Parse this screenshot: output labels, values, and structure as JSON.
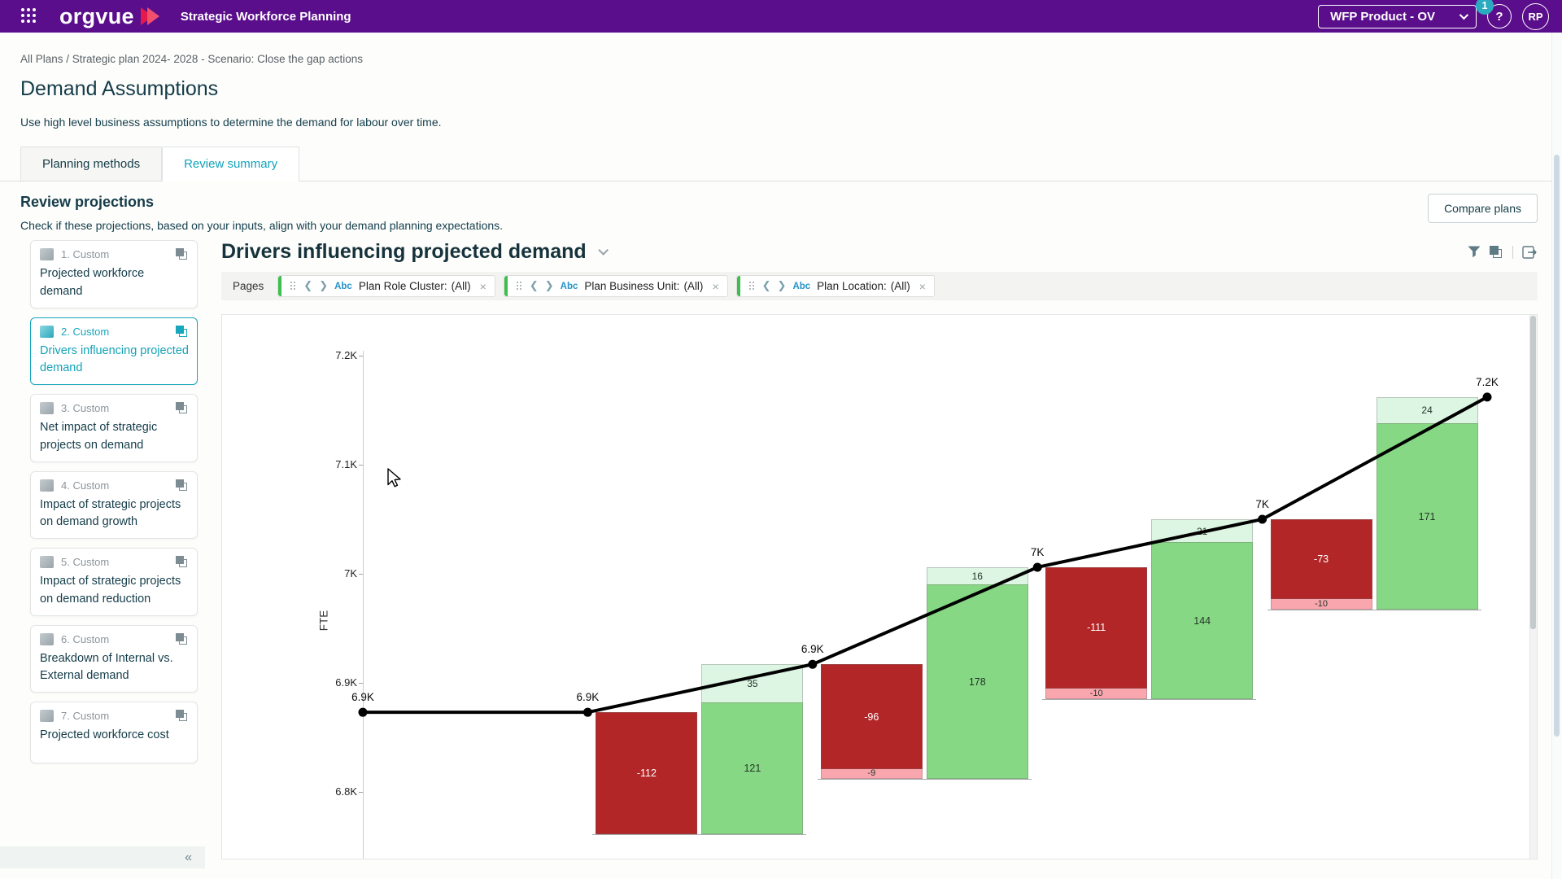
{
  "header": {
    "brand": "orgvue",
    "app_title": "Strategic Workforce Planning",
    "workspace": "WFP Product - OV",
    "notification_count": "1",
    "help_label": "?",
    "avatar_initials": "RP"
  },
  "breadcrumb": {
    "text": "All Plans / Strategic plan 2024- 2028 - Scenario: Close the gap actions"
  },
  "page": {
    "title": "Demand Assumptions",
    "subtitle": "Use high level business assumptions to determine the demand for labour over time."
  },
  "tabs": [
    {
      "label": "Planning methods",
      "active": false
    },
    {
      "label": "Review summary",
      "active": true
    }
  ],
  "section": {
    "title": "Review projections",
    "description": "Check if these projections, based on your inputs, align with your demand planning expectations.",
    "compare_button": "Compare plans"
  },
  "sidebar": {
    "collapse_icon": "«",
    "cards": [
      {
        "number_label": "1. Custom",
        "title": "Projected workforce demand",
        "selected": false
      },
      {
        "number_label": "2. Custom",
        "title": "Drivers influencing projected demand",
        "selected": true
      },
      {
        "number_label": "3. Custom",
        "title": "Net impact of strategic projects on demand",
        "selected": false
      },
      {
        "number_label": "4. Custom",
        "title": "Impact of strategic projects on demand growth",
        "selected": false
      },
      {
        "number_label": "5. Custom",
        "title": "Impact of strategic projects on demand reduction",
        "selected": false
      },
      {
        "number_label": "6. Custom",
        "title": "Breakdown of Internal vs. External demand",
        "selected": false
      },
      {
        "number_label": "7. Custom",
        "title": "Projected workforce cost",
        "selected": false
      }
    ]
  },
  "chart_header": {
    "title": "Drivers influencing projected demand",
    "pages_label": "Pages",
    "abc_label": "Abc",
    "chevron_left": "❮",
    "chevron_right": "❯",
    "remove_icon": "×",
    "filters": [
      {
        "field": "Plan Role Cluster:",
        "value": "(All)"
      },
      {
        "field": "Plan Business Unit:",
        "value": "(All)"
      },
      {
        "field": "Plan Location:",
        "value": "(All)"
      }
    ]
  },
  "chart_data": {
    "type": "waterfall-line",
    "title": "Drivers influencing projected demand",
    "ylabel": "FTE",
    "y_axis_range": [
      6760,
      7250
    ],
    "y_ticks": [
      {
        "label": "7.2K",
        "value": 7200
      },
      {
        "label": "7.1K",
        "value": 7100
      },
      {
        "label": "7K",
        "value": 7000
      },
      {
        "label": "6.9K",
        "value": 6900
      },
      {
        "label": "6.8K",
        "value": 6800
      }
    ],
    "line_points": [
      {
        "label": "6.9K",
        "value": 6873
      },
      {
        "label": "6.9K",
        "value": 6873
      },
      {
        "label": "6.9K",
        "value": 6917
      },
      {
        "label": "7K",
        "value": 7006
      },
      {
        "label": "7K",
        "value": 7050
      },
      {
        "label": "7.2K",
        "value": 7162
      }
    ],
    "pairs": [
      {
        "decrease": -112,
        "decrease_extra": null,
        "increase": 121,
        "increase_extra": 35
      },
      {
        "decrease": -96,
        "decrease_extra": -9,
        "increase": 178,
        "increase_extra": 16
      },
      {
        "decrease": -111,
        "decrease_extra": -10,
        "increase": 144,
        "increase_extra": 21
      },
      {
        "decrease": -73,
        "decrease_extra": -10,
        "increase": 171,
        "increase_extra": 24
      }
    ],
    "colors": {
      "decrease": "#B22627",
      "decrease_extra": "#F9A6AE",
      "increase": "#87D884",
      "increase_extra": "#DCF6E3",
      "line": "#000000"
    }
  },
  "accent_colors": {
    "purple": "#5A0E8B",
    "teal": "#12A3BB",
    "pill_green": "#3DBE4E",
    "badge_teal": "#2BABC0"
  }
}
